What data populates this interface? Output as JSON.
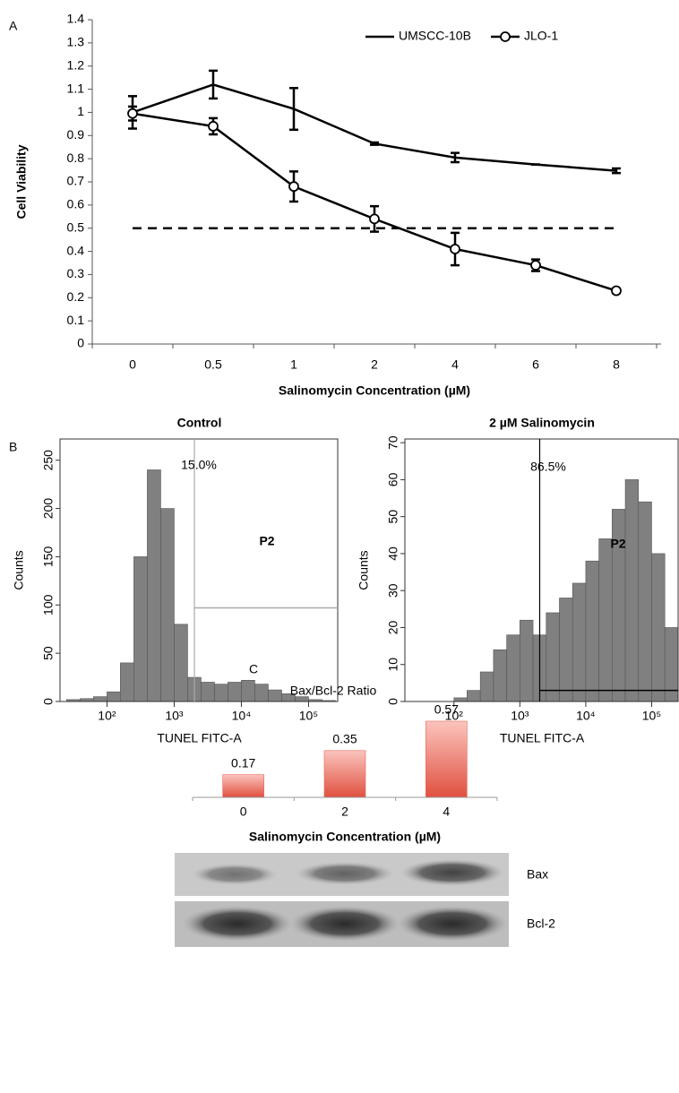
{
  "chart_data": [
    {
      "type": "line",
      "panel_label": "A",
      "xlabel": "Salinomycin Concentration (µM)",
      "ylabel": "Cell Viability",
      "categories": [
        "0",
        "0.5",
        "1",
        "2",
        "4",
        "6",
        "8"
      ],
      "series": [
        {
          "name": "UMSCC-10B",
          "color": "#000000",
          "marker": "none",
          "values": [
            1.0,
            1.12,
            1.015,
            0.865,
            0.805,
            0.775,
            0.748
          ],
          "errors": [
            0.07,
            0.06,
            0.09,
            0.005,
            0.02,
            0,
            0.01
          ]
        },
        {
          "name": "JLO-1",
          "color": "#000000",
          "marker": "circle",
          "values": [
            0.995,
            0.94,
            0.68,
            0.54,
            0.41,
            0.34,
            0.23
          ],
          "errors": [
            0.03,
            0.035,
            0.065,
            0.055,
            0.07,
            0.025,
            0.01
          ]
        }
      ],
      "ylim": [
        0,
        1.4
      ],
      "yticks": [
        0,
        0.1,
        0.2,
        0.3,
        0.4,
        0.5,
        0.6,
        0.7,
        0.8,
        0.9,
        1,
        1.1,
        1.2,
        1.3,
        1.4
      ],
      "reference_line": 0.5,
      "legend": "top-right"
    },
    {
      "type": "histogram",
      "panel_label": "B",
      "title": "Control",
      "xlabel": "TUNEL FITC-A",
      "ylabel": "Counts",
      "color": "#808080",
      "xscale": "log",
      "bins": [
        25,
        40,
        63,
        100,
        158,
        251,
        398,
        631,
        1000,
        1585,
        2512,
        3981,
        6310,
        10000,
        15849,
        25119,
        39811,
        63096,
        100000,
        158489,
        251189
      ],
      "counts": [
        2,
        3,
        5,
        10,
        40,
        150,
        240,
        200,
        80,
        25,
        20,
        18,
        20,
        22,
        18,
        12,
        8,
        5,
        2,
        1
      ],
      "xlim": [
        20,
        280000
      ],
      "xticks": [
        {
          "value": 100,
          "label": "10²"
        },
        {
          "value": 1000,
          "label": "10³"
        },
        {
          "value": 10000,
          "label": "10⁴"
        },
        {
          "value": 100000,
          "label": "10⁵"
        }
      ],
      "ylim": [
        0,
        272
      ],
      "yticks": [
        0,
        50,
        100,
        150,
        200,
        250
      ],
      "gate": {
        "x": 2000,
        "y": 97
      },
      "annotations": [
        {
          "text": "15.0%"
        },
        {
          "text": "P2"
        }
      ]
    },
    {
      "type": "histogram",
      "title": "2 µM Salinomycin",
      "xlabel": "TUNEL FITC-A",
      "ylabel": "Counts",
      "color": "#808080",
      "xscale": "log",
      "bins": [
        25,
        40,
        63,
        100,
        158,
        251,
        398,
        631,
        1000,
        1585,
        2512,
        3981,
        6310,
        10000,
        15849,
        25119,
        39811,
        63096,
        100000,
        158489,
        251189
      ],
      "counts": [
        0,
        0,
        0,
        1,
        3,
        8,
        14,
        18,
        22,
        18,
        24,
        28,
        32,
        38,
        44,
        52,
        60,
        54,
        40,
        20
      ],
      "xlim": [
        18,
        260000
      ],
      "xticks": [
        {
          "value": 100,
          "label": "10²"
        },
        {
          "value": 1000,
          "label": "10³"
        },
        {
          "value": 10000,
          "label": "10⁴"
        },
        {
          "value": 100000,
          "label": "10⁵"
        }
      ],
      "ylim": [
        0,
        71
      ],
      "yticks": [
        0,
        10,
        20,
        30,
        40,
        50,
        60,
        70
      ],
      "gate": {
        "x": 2000,
        "y": 3
      },
      "annotations": [
        {
          "text": "86.5%"
        },
        {
          "text": "P2"
        }
      ]
    },
    {
      "type": "bar",
      "panel_label": "C",
      "title": "Bax/Bcl-2 Ratio",
      "xlabel": "Salinomycin Concentration (µM)",
      "categories": [
        "0",
        "2",
        "4"
      ],
      "values": [
        0.17,
        0.35,
        0.57
      ],
      "color": "#e8675a",
      "bands": [
        "Bax",
        "Bcl-2"
      ]
    }
  ]
}
